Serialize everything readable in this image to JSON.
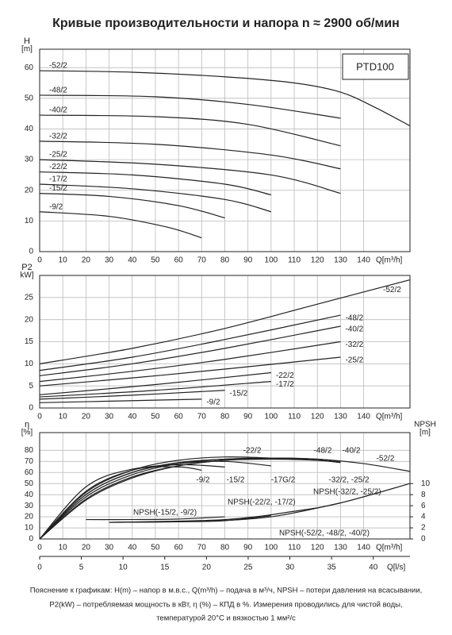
{
  "title": "Кривые производительности и напора n ≈ 2900 об/мин",
  "chart_data": [
    {
      "type": "line",
      "model": "PTD100",
      "ylabel": "H",
      "yunit": "[m]",
      "xlabel": "Q[m³/h]",
      "xlim": [
        0,
        160
      ],
      "xticks": [
        0,
        10,
        20,
        30,
        40,
        50,
        60,
        70,
        80,
        90,
        100,
        110,
        120,
        130,
        140
      ],
      "ylim": [
        0,
        66
      ],
      "yticks": [
        0,
        10,
        20,
        30,
        40,
        50,
        60
      ],
      "grid": true,
      "series": [
        {
          "name": "-52/2",
          "color": "#222",
          "x": [
            0,
            40,
            80,
            110,
            130,
            145,
            160
          ],
          "values": [
            59,
            58.5,
            57,
            55,
            52,
            47,
            41
          ]
        },
        {
          "name": "-48/2",
          "color": "#222",
          "x": [
            0,
            50,
            90,
            130
          ],
          "values": [
            51,
            50.5,
            48,
            43.5
          ]
        },
        {
          "name": "-40/2",
          "color": "#222",
          "x": [
            0,
            50,
            90,
            130
          ],
          "values": [
            44.5,
            44,
            41.5,
            34.5
          ]
        },
        {
          "name": "-32/2",
          "color": "#222",
          "x": [
            0,
            50,
            100,
            130
          ],
          "values": [
            36,
            35,
            31.5,
            27
          ]
        },
        {
          "name": "-25/2",
          "color": "#222",
          "x": [
            0,
            50,
            100,
            130
          ],
          "values": [
            30,
            28.5,
            25,
            19
          ]
        },
        {
          "name": "-22/2",
          "color": "#222",
          "x": [
            0,
            40,
            80,
            100
          ],
          "values": [
            26,
            25,
            22,
            18.5
          ]
        },
        {
          "name": "-17/2",
          "color": "#222",
          "x": [
            0,
            40,
            80,
            100
          ],
          "values": [
            22,
            20.5,
            17,
            13
          ]
        },
        {
          "name": "-15/2",
          "color": "#222",
          "x": [
            0,
            30,
            60,
            80
          ],
          "values": [
            19,
            18,
            15,
            11
          ]
        },
        {
          "name": "-9/2",
          "color": "#222",
          "x": [
            0,
            30,
            55,
            70
          ],
          "values": [
            13,
            11.5,
            8,
            4.5
          ]
        }
      ]
    },
    {
      "type": "line",
      "ylabel": "P2",
      "yunit": "kW]",
      "xlabel": "Q[m³/h]",
      "xlim": [
        0,
        160
      ],
      "xticks": [
        0,
        10,
        20,
        30,
        40,
        50,
        60,
        70,
        80,
        90,
        100,
        110,
        120,
        130,
        140
      ],
      "ylim": [
        0,
        30
      ],
      "yticks": [
        0,
        5,
        10,
        15,
        20,
        25
      ],
      "grid": true,
      "series": [
        {
          "name": "-52/2",
          "color": "#222",
          "x": [
            0,
            40,
            80,
            120,
            160
          ],
          "values": [
            10,
            13.5,
            18,
            23.5,
            29
          ]
        },
        {
          "name": "-48/2",
          "color": "#222",
          "x": [
            0,
            40,
            80,
            130
          ],
          "values": [
            8.5,
            11.5,
            15.5,
            21
          ]
        },
        {
          "name": "-40/2",
          "color": "#222",
          "x": [
            0,
            40,
            80,
            130
          ],
          "values": [
            7.3,
            10,
            13.5,
            18.5
          ]
        },
        {
          "name": "-32/2",
          "color": "#222",
          "x": [
            0,
            40,
            80,
            130
          ],
          "values": [
            6,
            8.3,
            11,
            15
          ]
        },
        {
          "name": "-25/2",
          "color": "#222",
          "x": [
            0,
            40,
            80,
            130
          ],
          "values": [
            5,
            6.8,
            8.8,
            11.5
          ]
        },
        {
          "name": "-22/2",
          "color": "#222",
          "x": [
            0,
            50,
            100
          ],
          "values": [
            3,
            5.3,
            8
          ]
        },
        {
          "name": "-17/2",
          "color": "#222",
          "x": [
            0,
            50,
            100
          ],
          "values": [
            2.5,
            4,
            6
          ]
        },
        {
          "name": "-15/2",
          "color": "#222",
          "x": [
            0,
            40,
            80
          ],
          "values": [
            2,
            2.9,
            4
          ]
        },
        {
          "name": "-9/2",
          "color": "#222",
          "x": [
            0,
            35,
            70
          ],
          "values": [
            1.2,
            1.6,
            2
          ]
        }
      ]
    },
    {
      "type": "line",
      "ylabel": "η",
      "yunit": "[%]",
      "y2label": "NPSH",
      "y2unit": "[m]",
      "xlabel": "Q[m³/h]",
      "x2label": "Q[l/s]",
      "xlim": [
        0,
        160
      ],
      "xticks": [
        0,
        10,
        20,
        30,
        40,
        50,
        60,
        70,
        80,
        90,
        100,
        110,
        120,
        130,
        140
      ],
      "ylim": [
        0,
        96
      ],
      "yticks": [
        0,
        10,
        20,
        30,
        40,
        50,
        60,
        70,
        80
      ],
      "y2lim": [
        0,
        19.2
      ],
      "y2ticks": [
        0,
        2,
        4,
        6,
        8,
        10
      ],
      "x2lim": [
        0,
        44.4
      ],
      "x2ticks": [
        0,
        5,
        10,
        15,
        20,
        25,
        30,
        35,
        40
      ],
      "grid": true,
      "series": [
        {
          "name": "-22/2",
          "color": "#222",
          "x": [
            0,
            20,
            40,
            60,
            80,
            100
          ],
          "values": [
            0,
            42,
            62,
            71,
            74,
            73
          ]
        },
        {
          "name": "-48/2",
          "color": "#222",
          "x": [
            0,
            20,
            40,
            60,
            80,
            100,
            120,
            130
          ],
          "values": [
            0,
            38,
            58,
            68,
            72,
            73,
            71,
            69
          ]
        },
        {
          "name": "-40/2",
          "color": "#222",
          "x": [
            0,
            20,
            40,
            60,
            80,
            100,
            120,
            130
          ],
          "values": [
            0,
            40,
            60,
            69,
            72,
            73,
            72,
            70
          ]
        },
        {
          "name": "-52/2",
          "color": "#222",
          "x": [
            0,
            20,
            40,
            60,
            80,
            100,
            120,
            140,
            160
          ],
          "values": [
            0,
            35,
            55,
            66,
            71,
            73,
            72,
            68,
            61
          ]
        },
        {
          "name": "-9/2",
          "color": "#222",
          "x": [
            0,
            20,
            40,
            60,
            70
          ],
          "values": [
            0,
            47,
            63,
            65,
            62
          ]
        },
        {
          "name": "-15/2",
          "color": "#222",
          "x": [
            0,
            20,
            40,
            60,
            80
          ],
          "values": [
            0,
            43,
            62,
            67,
            65
          ]
        },
        {
          "name": "-17G/2",
          "color": "#222",
          "x": [
            0,
            20,
            40,
            60,
            80,
            100
          ],
          "values": [
            0,
            40,
            60,
            68,
            70,
            66
          ]
        },
        {
          "name": "-32/2, -25/2",
          "color": "#222",
          "x": [
            0,
            20,
            40,
            60,
            80,
            100,
            120,
            130
          ],
          "values": [
            0,
            36,
            56,
            66,
            71,
            72,
            71,
            69
          ]
        },
        {
          "name": "NPSH(-15/2, -9/2)",
          "color": "#222",
          "axis": "y2",
          "x": [
            20,
            40,
            60,
            80
          ],
          "values": [
            3.5,
            3.5,
            3.6,
            4
          ]
        },
        {
          "name": "NPSH(-22/2, -17/2)",
          "color": "#222",
          "axis": "y2",
          "x": [
            30,
            60,
            80,
            100
          ],
          "values": [
            3,
            3.1,
            3.3,
            4.2
          ]
        },
        {
          "name": "NPSH(-32/2, -25/2)",
          "color": "#222",
          "axis": "y2",
          "x": [
            30,
            70,
            100,
            130
          ],
          "values": [
            3,
            3.2,
            4,
            6.5
          ]
        },
        {
          "name": "NPSH(-52/2, -48/2, -40/2)",
          "color": "#222",
          "axis": "y2",
          "x": [
            30,
            80,
            110,
            130,
            160
          ],
          "values": [
            3,
            3.5,
            5,
            6.5,
            10
          ]
        }
      ]
    }
  ],
  "footer": [
    "Пояснение к графикам: H(m) – напор в м.в.с., Q(m³/h) – подача в м³/ч, NPSH – потери давления на всасывании,",
    "P2(kW) – потребляемая мощность в кВт, η (%) – КПД в %. Измерения проводились для чистой воды,",
    "температурой 20°C и вязкостью 1 мм²/с"
  ]
}
